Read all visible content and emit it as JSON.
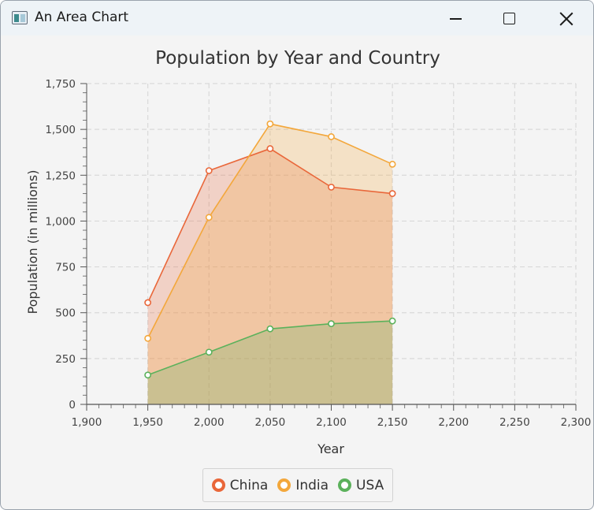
{
  "window": {
    "title": "An Area Chart"
  },
  "chart_data": {
    "type": "area",
    "title": "Population by Year and Country",
    "xlabel": "Year",
    "ylabel": "Population (in millions)",
    "xlim": [
      1900,
      2300
    ],
    "ylim": [
      0,
      1750
    ],
    "x_ticks": [
      "1,900",
      "1,950",
      "2,000",
      "2,050",
      "2,100",
      "2,150",
      "2,200",
      "2,250",
      "2,300"
    ],
    "y_ticks": [
      "0",
      "250",
      "500",
      "750",
      "1,000",
      "1,250",
      "1,500",
      "1,750"
    ],
    "grid": true,
    "legend": "bottom-center",
    "series": [
      {
        "name": "China",
        "color": "#e9673a",
        "x": [
          1950,
          2000,
          2050,
          2100,
          2150
        ],
        "values": [
          555,
          1275,
          1395,
          1185,
          1150
        ]
      },
      {
        "name": "India",
        "color": "#f3a73b",
        "x": [
          1950,
          2000,
          2050,
          2100,
          2150
        ],
        "values": [
          360,
          1020,
          1530,
          1460,
          1310
        ]
      },
      {
        "name": "USA",
        "color": "#5bb15b",
        "x": [
          1950,
          2000,
          2050,
          2100,
          2150
        ],
        "values": [
          160,
          285,
          412,
          440,
          455
        ]
      }
    ]
  }
}
